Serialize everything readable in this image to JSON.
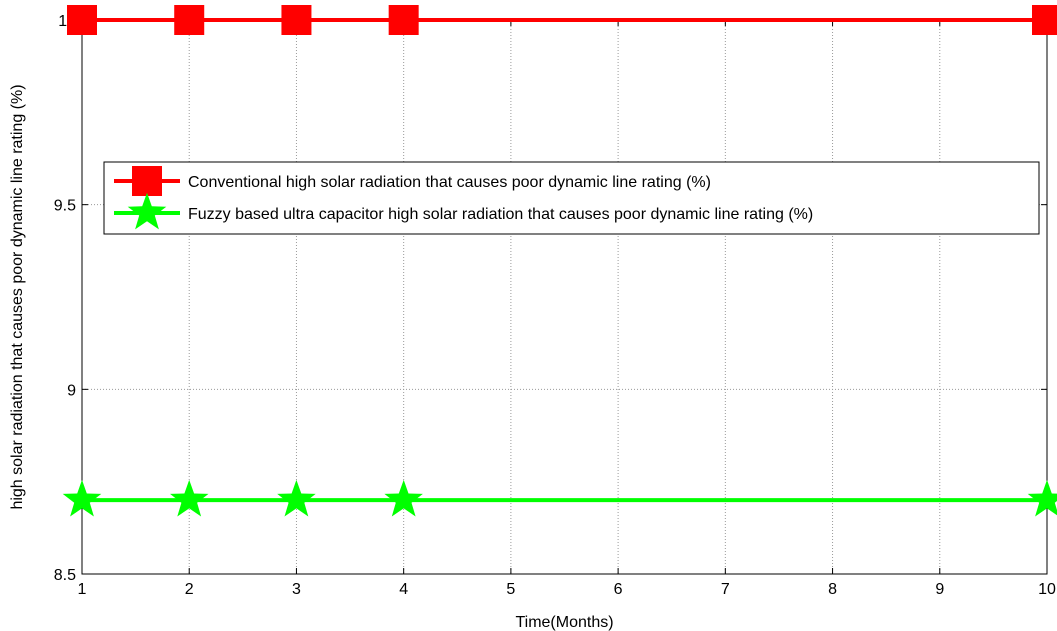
{
  "chart_data": {
    "type": "line",
    "xlabel": "Time(Months)",
    "ylabel": "high solar radiation  that causes poor dynamic line rating (%)",
    "xlim": [
      1,
      10
    ],
    "ylim": [
      8.5,
      10
    ],
    "xticks": [
      "1",
      "2",
      "3",
      "4",
      "5",
      "6",
      "7",
      "8",
      "9",
      "10"
    ],
    "yticks": [
      "8.5",
      "9",
      "9.5",
      "10"
    ],
    "grid": true,
    "legend_position": "upper-middle",
    "series": [
      {
        "name": "Conventional high solar radiation  that causes poor dynamic line rating (%)",
        "color": "#ff0000",
        "marker": "square",
        "x": [
          1,
          2,
          3,
          4,
          10
        ],
        "y": [
          10,
          10,
          10,
          10,
          10
        ]
      },
      {
        "name": "Fuzzy based ultra capacitor high solar radiation  that causes poor dynamic line rating (%)",
        "color": "#00ff00",
        "marker": "star",
        "x": [
          1,
          2,
          3,
          4,
          10
        ],
        "y": [
          8.7,
          8.7,
          8.7,
          8.7,
          8.7
        ]
      }
    ]
  }
}
